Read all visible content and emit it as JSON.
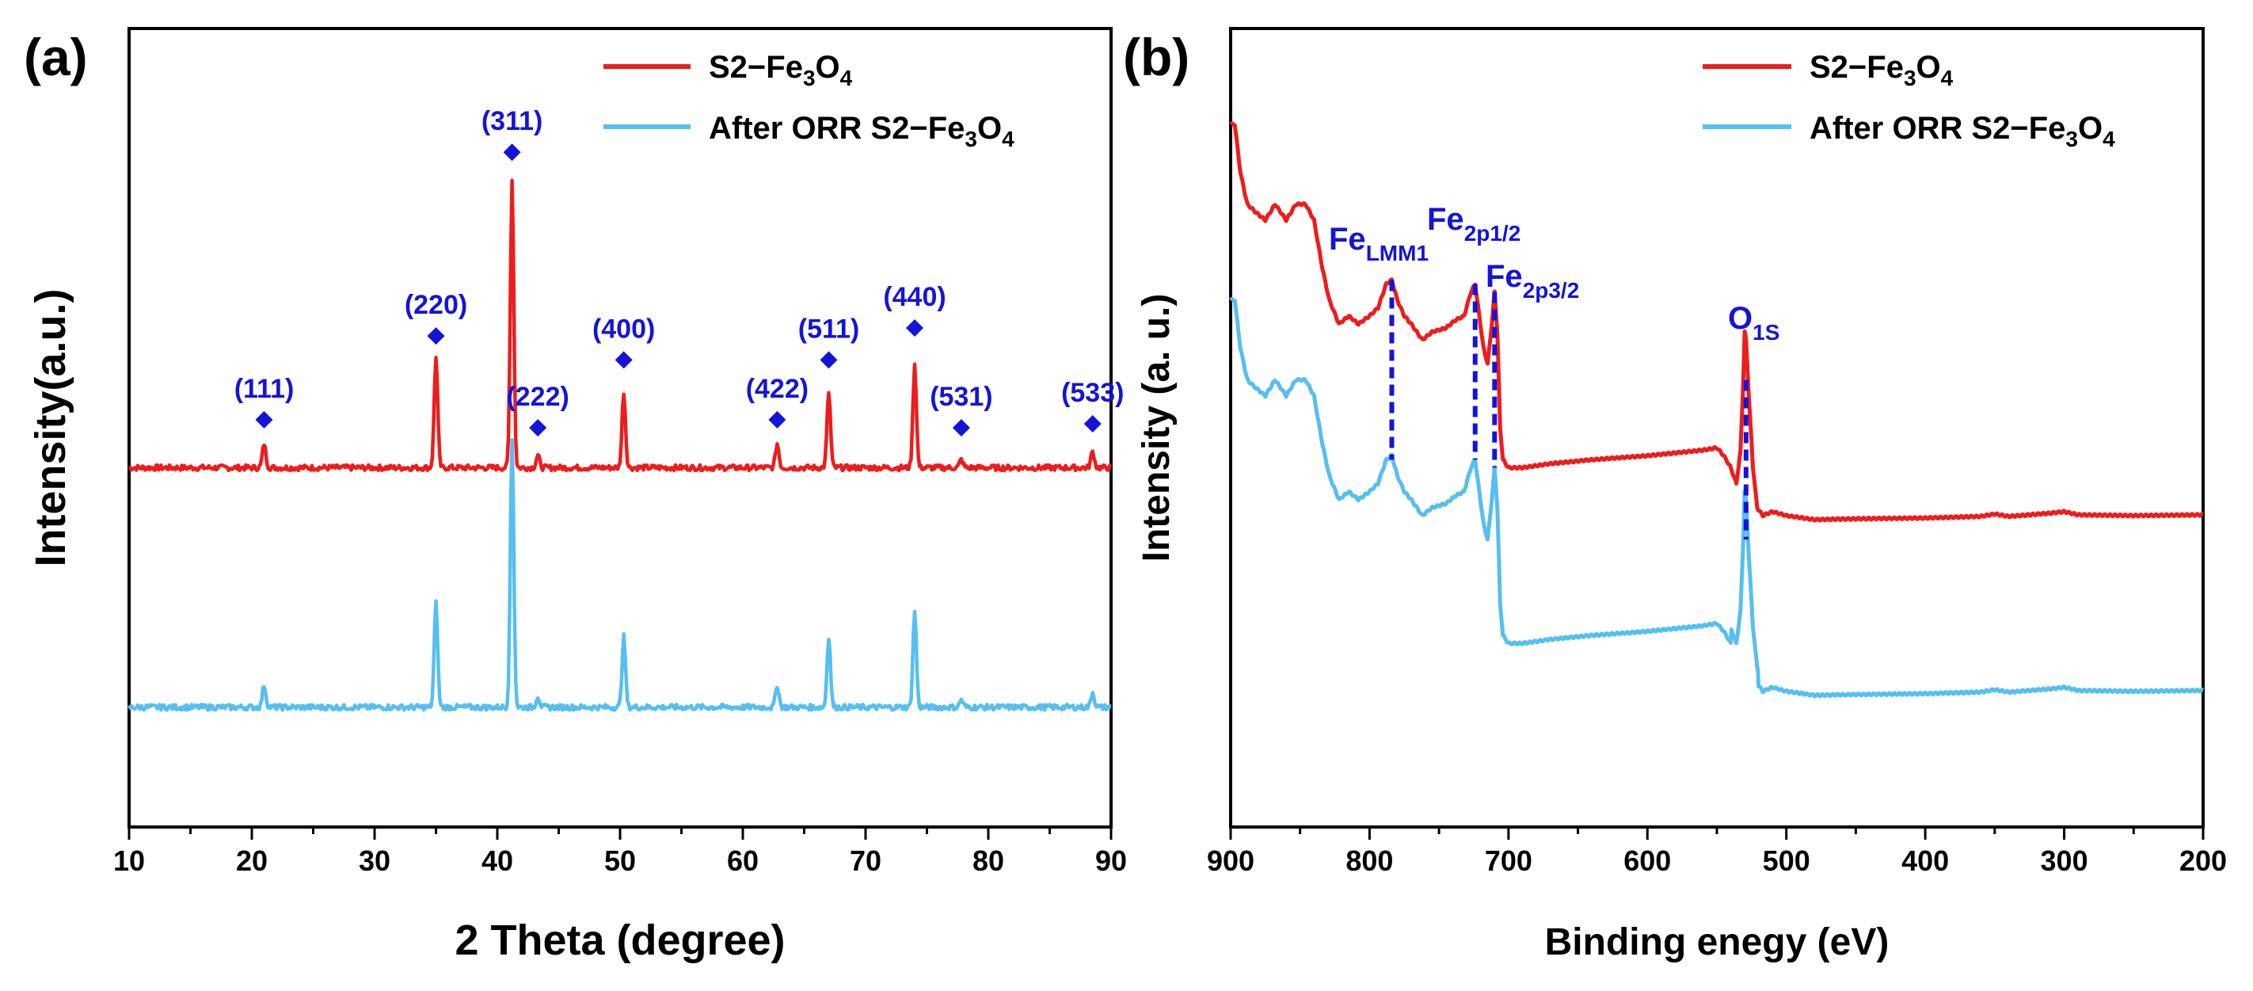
{
  "colors": {
    "red": "#ee1c1c",
    "blue": "#55bff0",
    "annotation": "#1414d9"
  },
  "chart_data": [
    {
      "panel": "(a)",
      "type": "line",
      "xlabel": "2 Theta (degree)",
      "ylabel": "Intensity(a.u.)",
      "xlim": [
        10,
        90
      ],
      "ylim": [
        0,
        100
      ],
      "xticks": [
        "10",
        "20",
        "30",
        "40",
        "50",
        "60",
        "70",
        "80",
        "90"
      ],
      "legend_position": "top-right",
      "series": [
        {
          "name": "S2−Fe3O4",
          "legend_main": "S2−Fe",
          "legend_sub1": "3",
          "legend_mid": "O",
          "legend_sub2": "4",
          "color": "#ee1c1c",
          "baseline": 45,
          "noise": 0.35,
          "scale": 1.0
        },
        {
          "name": "After ORR S2−Fe3O4",
          "legend_main": "After ORR S2−Fe",
          "legend_sub1": "3",
          "legend_mid": "O",
          "legend_sub2": "4",
          "color": "#55bff0",
          "baseline": 15,
          "noise": 0.35,
          "scale": 0.93
        }
      ],
      "peaks": [
        {
          "two_theta": 21.0,
          "height": 3.0,
          "label": "(111)",
          "marker_y": 51.0
        },
        {
          "two_theta": 35.0,
          "height": 14.0,
          "label": "(220)",
          "marker_y": 61.5
        },
        {
          "two_theta": 41.2,
          "height": 36.0,
          "label": "(311)",
          "marker_y": 84.5
        },
        {
          "two_theta": 43.3,
          "height": 1.5,
          "label": "(222)",
          "marker_y": 50.0
        },
        {
          "two_theta": 50.3,
          "height": 9.5,
          "label": "(400)",
          "marker_y": 58.5
        },
        {
          "two_theta": 62.8,
          "height": 3.0,
          "label": "(422)",
          "marker_y": 51.0
        },
        {
          "two_theta": 67.0,
          "height": 9.5,
          "label": "(511)",
          "marker_y": 58.5
        },
        {
          "two_theta": 74.0,
          "height": 13.0,
          "label": "(440)",
          "marker_y": 62.5
        },
        {
          "two_theta": 77.8,
          "height": 1.0,
          "label": "(531)",
          "marker_y": 50.0
        },
        {
          "two_theta": 88.5,
          "height": 2.0,
          "label": "(533)",
          "marker_y": 50.5
        }
      ]
    },
    {
      "panel": "(b)",
      "type": "line",
      "xlabel": "Binding enegy (eV)",
      "ylabel": "Intensity (a. u.)",
      "xlim": [
        900,
        200
      ],
      "ylim": [
        0,
        100
      ],
      "xticks": [
        "900",
        "800",
        "700",
        "600",
        "500",
        "400",
        "300",
        "200"
      ],
      "legend_position": "top-right",
      "series": [
        {
          "name": "S2−Fe3O4",
          "legend_main": "S2−Fe",
          "legend_sub1": "3",
          "legend_mid": "O",
          "legend_sub2": "4",
          "color": "#ee1c1c",
          "offset": 0,
          "points": [
            [
              900,
              88
            ],
            [
              897,
              88
            ],
            [
              893,
              82
            ],
            [
              888,
              78
            ],
            [
              882,
              77
            ],
            [
              875,
              76
            ],
            [
              868,
              78
            ],
            [
              860,
              76
            ],
            [
              853,
              78
            ],
            [
              846,
              78
            ],
            [
              840,
              76
            ],
            [
              834,
              70
            ],
            [
              829,
              66
            ],
            [
              822,
              63
            ],
            [
              815,
              64
            ],
            [
              808,
              63
            ],
            [
              800,
              64
            ],
            [
              794,
              65
            ],
            [
              788,
              68
            ],
            [
              784,
              68.5
            ],
            [
              780,
              66
            ],
            [
              775,
              64
            ],
            [
              770,
              63
            ],
            [
              762,
              61
            ],
            [
              755,
              62
            ],
            [
              745,
              62.5
            ],
            [
              738,
              63.5
            ],
            [
              732,
              64
            ],
            [
              727,
              67
            ],
            [
              724,
              68
            ],
            [
              721,
              64
            ],
            [
              718,
              60
            ],
            [
              715,
              58
            ],
            [
              712,
              63
            ],
            [
              710,
              67
            ],
            [
              708,
              62
            ],
            [
              706,
              50
            ],
            [
              704,
              46
            ],
            [
              700,
              45
            ],
            [
              690,
              45
            ],
            [
              670,
              45.5
            ],
            [
              640,
              46
            ],
            [
              600,
              46.5
            ],
            [
              560,
              47.2
            ],
            [
              550,
              47.5
            ],
            [
              545,
              46.5
            ],
            [
              540,
              45
            ],
            [
              536,
              43
            ],
            [
              533,
              47
            ],
            [
              531,
              56
            ],
            [
              530,
              62
            ],
            [
              529,
              61
            ],
            [
              527,
              54
            ],
            [
              524,
              45
            ],
            [
              521,
              40
            ],
            [
              517,
              39
            ],
            [
              510,
              39.5
            ],
            [
              500,
              39
            ],
            [
              480,
              38.5
            ],
            [
              450,
              38.6
            ],
            [
              400,
              38.7
            ],
            [
              360,
              38.9
            ],
            [
              350,
              39.2
            ],
            [
              340,
              38.9
            ],
            [
              310,
              39.3
            ],
            [
              300,
              39.5
            ],
            [
              290,
              39.1
            ],
            [
              250,
              39
            ],
            [
              200,
              39.1
            ]
          ]
        },
        {
          "name": "After ORR S2−Fe3O4",
          "legend_main": "After ORR S2−Fe",
          "legend_sub1": "3",
          "legend_mid": "O",
          "legend_sub2": "4",
          "color": "#55bff0",
          "offset": -22
        }
      ],
      "annotations": [
        {
          "label_main": "Fe",
          "label_sub": "LMM1",
          "energy": 784,
          "line_top": 68.5,
          "line_bottom": 46
        },
        {
          "label_main": "Fe",
          "label_sub": "2p1/2",
          "energy": 724,
          "line_top": 68,
          "line_bottom": 46
        },
        {
          "label_main": "Fe",
          "label_sub": "2p3/2",
          "energy": 710,
          "line_top": 67,
          "line_bottom": 45
        },
        {
          "label_main": "O",
          "label_sub": "1S",
          "energy": 529,
          "line_top": 56,
          "line_bottom": 36
        }
      ]
    }
  ]
}
